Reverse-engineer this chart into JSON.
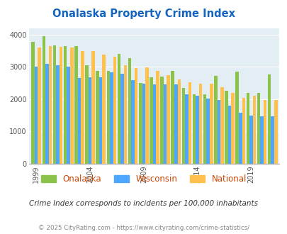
{
  "title": "Onalaska Property Crime Index",
  "title_color": "#1565C0",
  "years": [
    1999,
    2000,
    2001,
    2002,
    2003,
    2004,
    2005,
    2006,
    2007,
    2008,
    2009,
    2010,
    2011,
    2012,
    2013,
    2014,
    2015,
    2016,
    2017,
    2018,
    2019,
    2020,
    2021
  ],
  "onalaska": [
    3780,
    3940,
    3660,
    3650,
    3650,
    3040,
    2870,
    2870,
    3400,
    3280,
    2510,
    2670,
    2690,
    2870,
    2350,
    2160,
    2150,
    2730,
    2270,
    2850,
    2200,
    2200,
    2760
  ],
  "wisconsin": [
    3000,
    3090,
    3050,
    3000,
    2650,
    2670,
    2680,
    2830,
    2790,
    2600,
    2490,
    2450,
    2450,
    2450,
    2150,
    2110,
    2010,
    1980,
    1810,
    1570,
    1490,
    1470,
    1470
  ],
  "national": [
    3600,
    3650,
    3620,
    3600,
    3500,
    3490,
    3380,
    3320,
    3050,
    2960,
    2980,
    2870,
    2740,
    2610,
    2520,
    2490,
    2490,
    2360,
    2200,
    2050,
    2100,
    1980,
    1980
  ],
  "onalaska_color": "#8BC34A",
  "wisconsin_color": "#4DA6FF",
  "national_color": "#FFC04D",
  "bg_color": "#E3EEF4",
  "ylabel_ticks": [
    0,
    1000,
    2000,
    3000,
    4000
  ],
  "xtick_labels": [
    "1999",
    "2004",
    "2009",
    "2014",
    "2019"
  ],
  "xtick_positions": [
    0,
    5,
    10,
    15,
    20
  ],
  "ylim": [
    0,
    4200
  ],
  "bar_width": 0.3,
  "subtitle": "Crime Index corresponds to incidents per 100,000 inhabitants",
  "footer": "© 2025 CityRating.com - https://www.cityrating.com/crime-statistics/",
  "subtitle_color": "#333333",
  "footer_color": "#888888",
  "legend_label_color": "#CC4400"
}
